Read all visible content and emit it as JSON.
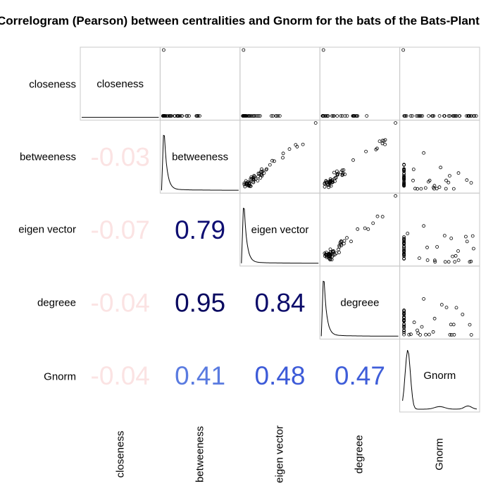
{
  "chart_data": {
    "type": "correlogram",
    "title": "Correlogram (Pearson) between centralities and Gnorm for the bats of the Bats-Plant",
    "method": "Pearson",
    "variables": [
      "closeness",
      "betweeness",
      "eigen vector",
      "degreee",
      "Gnorm"
    ],
    "correlations": [
      {
        "row": "betweeness",
        "col": "closeness",
        "value": "-0.03",
        "color": "#fbe3e3"
      },
      {
        "row": "eigen vector",
        "col": "closeness",
        "value": "-0.07",
        "color": "#fbe3e3"
      },
      {
        "row": "eigen vector",
        "col": "betweeness",
        "value": "0.79",
        "color": "#0e0e72"
      },
      {
        "row": "degreee",
        "col": "closeness",
        "value": "-0.04",
        "color": "#fbe3e3"
      },
      {
        "row": "degreee",
        "col": "betweeness",
        "value": "0.95",
        "color": "#0a0a60"
      },
      {
        "row": "degreee",
        "col": "eigen vector",
        "value": "0.84",
        "color": "#0c0c6a"
      },
      {
        "row": "Gnorm",
        "col": "closeness",
        "value": "-0.04",
        "color": "#fbe3e3"
      },
      {
        "row": "Gnorm",
        "col": "betweeness",
        "value": "0.41",
        "color": "#5a7be0"
      },
      {
        "row": "Gnorm",
        "col": "eigen vector",
        "value": "0.48",
        "color": "#3d5bd8"
      },
      {
        "row": "Gnorm",
        "col": "degreee",
        "value": "0.47",
        "color": "#3f5ed9"
      }
    ],
    "upper_panels": "scatter",
    "diagonal_panels": "density",
    "grid": false
  }
}
